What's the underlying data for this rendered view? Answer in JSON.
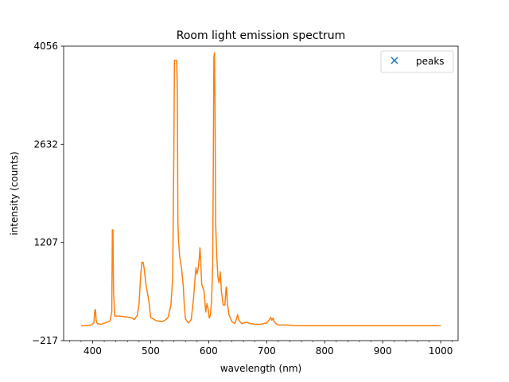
{
  "chart_data": {
    "type": "line",
    "title": "Room light emission spectrum",
    "xlabel": "wavelength (nm)",
    "ylabel": "intensity (counts)",
    "xlim": [
      350,
      1030
    ],
    "ylim": [
      -217,
      4056
    ],
    "xticks": [
      400,
      500,
      600,
      700,
      800,
      900,
      1000
    ],
    "xticks_minor_step": 20,
    "yticks": [
      -217,
      1207,
      2632,
      4056
    ],
    "legend": {
      "placement": "top-right",
      "entries": [
        {
          "label": "peaks",
          "marker": "x",
          "color": "#1f77b4"
        }
      ]
    },
    "series": [
      {
        "color": "#ff7f0e",
        "points": [
          [
            380,
            0
          ],
          [
            390,
            0
          ],
          [
            398,
            10
          ],
          [
            402,
            40
          ],
          [
            404,
            230
          ],
          [
            405,
            230
          ],
          [
            406,
            80
          ],
          [
            408,
            30
          ],
          [
            415,
            20
          ],
          [
            425,
            50
          ],
          [
            430,
            70
          ],
          [
            433,
            200
          ],
          [
            434,
            1390
          ],
          [
            435,
            1390
          ],
          [
            436,
            500
          ],
          [
            438,
            140
          ],
          [
            445,
            140
          ],
          [
            455,
            130
          ],
          [
            465,
            120
          ],
          [
            472,
            90
          ],
          [
            477,
            150
          ],
          [
            480,
            320
          ],
          [
            483,
            750
          ],
          [
            485,
            920
          ],
          [
            487,
            920
          ],
          [
            489,
            820
          ],
          [
            492,
            590
          ],
          [
            495,
            450
          ],
          [
            497,
            360
          ],
          [
            500,
            120
          ],
          [
            510,
            70
          ],
          [
            520,
            60
          ],
          [
            525,
            80
          ],
          [
            530,
            120
          ],
          [
            535,
            300
          ],
          [
            538,
            700
          ],
          [
            540,
            2500
          ],
          [
            541,
            3850
          ],
          [
            545,
            3850
          ],
          [
            546,
            3400
          ],
          [
            547,
            1500
          ],
          [
            548,
            1250
          ],
          [
            550,
            1000
          ],
          [
            553,
            850
          ],
          [
            556,
            600
          ],
          [
            558,
            300
          ],
          [
            560,
            100
          ],
          [
            565,
            40
          ],
          [
            570,
            90
          ],
          [
            574,
            400
          ],
          [
            576,
            630
          ],
          [
            578,
            840
          ],
          [
            580,
            750
          ],
          [
            582,
            830
          ],
          [
            584,
            1000
          ],
          [
            585,
            1130
          ],
          [
            586,
            1000
          ],
          [
            588,
            600
          ],
          [
            592,
            500
          ],
          [
            595,
            200
          ],
          [
            597,
            320
          ],
          [
            599,
            250
          ],
          [
            601,
            110
          ],
          [
            603,
            150
          ],
          [
            605,
            350
          ],
          [
            607,
            900
          ],
          [
            608,
            2300
          ],
          [
            609,
            3900
          ],
          [
            610,
            3960
          ],
          [
            611,
            3200
          ],
          [
            612,
            1500
          ],
          [
            614,
            1000
          ],
          [
            616,
            700
          ],
          [
            618,
            620
          ],
          [
            620,
            780
          ],
          [
            622,
            500
          ],
          [
            625,
            300
          ],
          [
            628,
            300
          ],
          [
            630,
            550
          ],
          [
            631,
            560
          ],
          [
            632,
            350
          ],
          [
            635,
            160
          ],
          [
            640,
            60
          ],
          [
            645,
            30
          ],
          [
            648,
            100
          ],
          [
            650,
            160
          ],
          [
            652,
            80
          ],
          [
            657,
            30
          ],
          [
            665,
            50
          ],
          [
            672,
            30
          ],
          [
            680,
            20
          ],
          [
            690,
            20
          ],
          [
            700,
            40
          ],
          [
            705,
            90
          ],
          [
            707,
            120
          ],
          [
            709,
            80
          ],
          [
            711,
            110
          ],
          [
            713,
            60
          ],
          [
            716,
            30
          ],
          [
            720,
            10
          ],
          [
            735,
            10
          ],
          [
            750,
            0
          ],
          [
            800,
            0
          ],
          [
            850,
            0
          ],
          [
            900,
            0
          ],
          [
            950,
            0
          ],
          [
            1000,
            0
          ]
        ]
      }
    ]
  }
}
